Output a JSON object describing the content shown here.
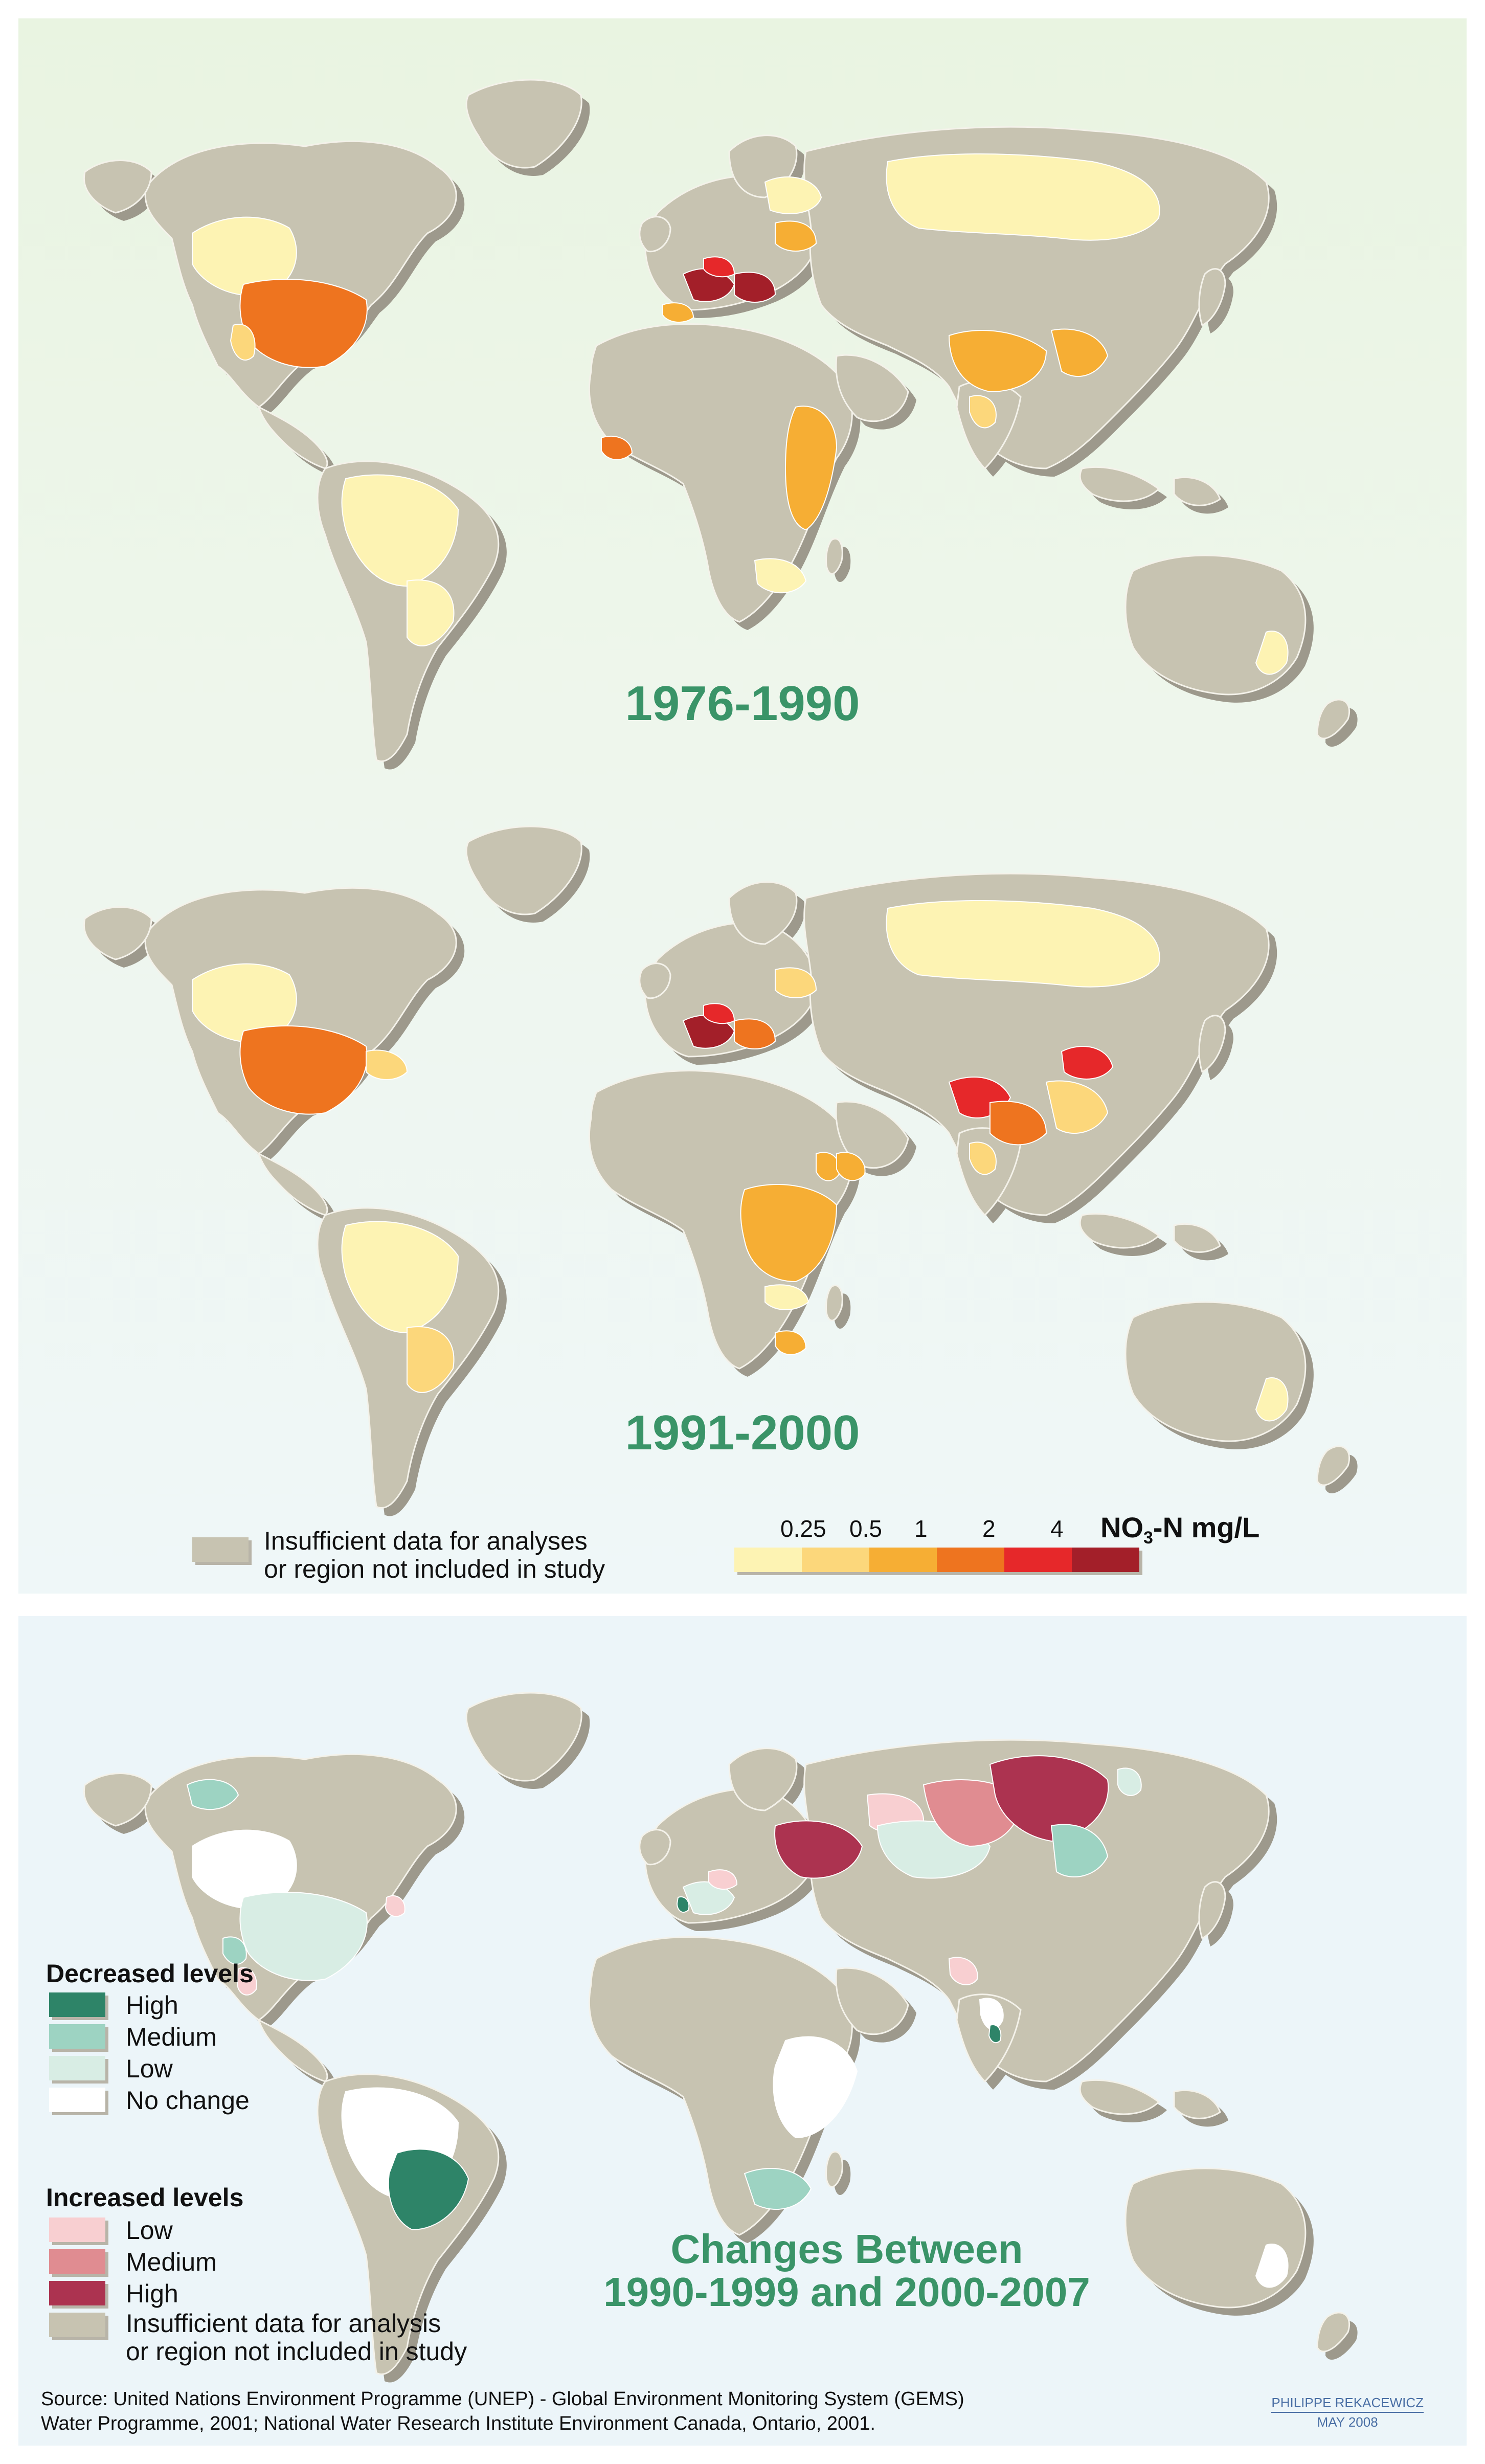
{
  "colors": {
    "land": "#c7c3b1",
    "land_shadow": "#9d998c",
    "title": "#3a9468",
    "conc": [
      "#fdf3b3",
      "#fcd77b",
      "#f6ae34",
      "#ee741f",
      "#e6282a",
      "#a31f29"
    ],
    "dec_high": "#2e8468",
    "dec_medium": "#9dd3c2",
    "dec_low": "#d8ede4",
    "no_change": "#ffffff",
    "inc_low": "#f8cfd1",
    "inc_medium": "#e08c91",
    "inc_high": "#ac3350"
  },
  "map1": {
    "title": "1976-1990"
  },
  "map2": {
    "title": "1991-2000"
  },
  "legend_top": {
    "insufficient": [
      "Insufficient data for analyses",
      "or region not included in study"
    ],
    "scale_ticks": [
      "0.25",
      "0.5",
      "1",
      "2",
      "4"
    ],
    "unit_prefix": "NO",
    "unit_sub": "3",
    "unit_suffix": "-N mg/L"
  },
  "map3": {
    "title_line1": "Changes Between",
    "title_line2": "1990-1999 and 2000-2007"
  },
  "legend_bottom": {
    "decreased_heading": "Decreased levels",
    "increased_heading": "Increased levels",
    "high": "High",
    "medium": "Medium",
    "low": "Low",
    "no_change": "No change",
    "insufficient": [
      "Insufficient data for analysis",
      "or region not included in study"
    ]
  },
  "source": [
    "Source: United Nations Environment Programme (UNEP) -  Global Environment Monitoring System (GEMS)",
    "Water Programme, 2001; National Water Research Institute Environment Canada, Ontario, 2001."
  ],
  "credit": {
    "author": "PHILIPPE REKACEWICZ",
    "date": "MAY 2008"
  }
}
